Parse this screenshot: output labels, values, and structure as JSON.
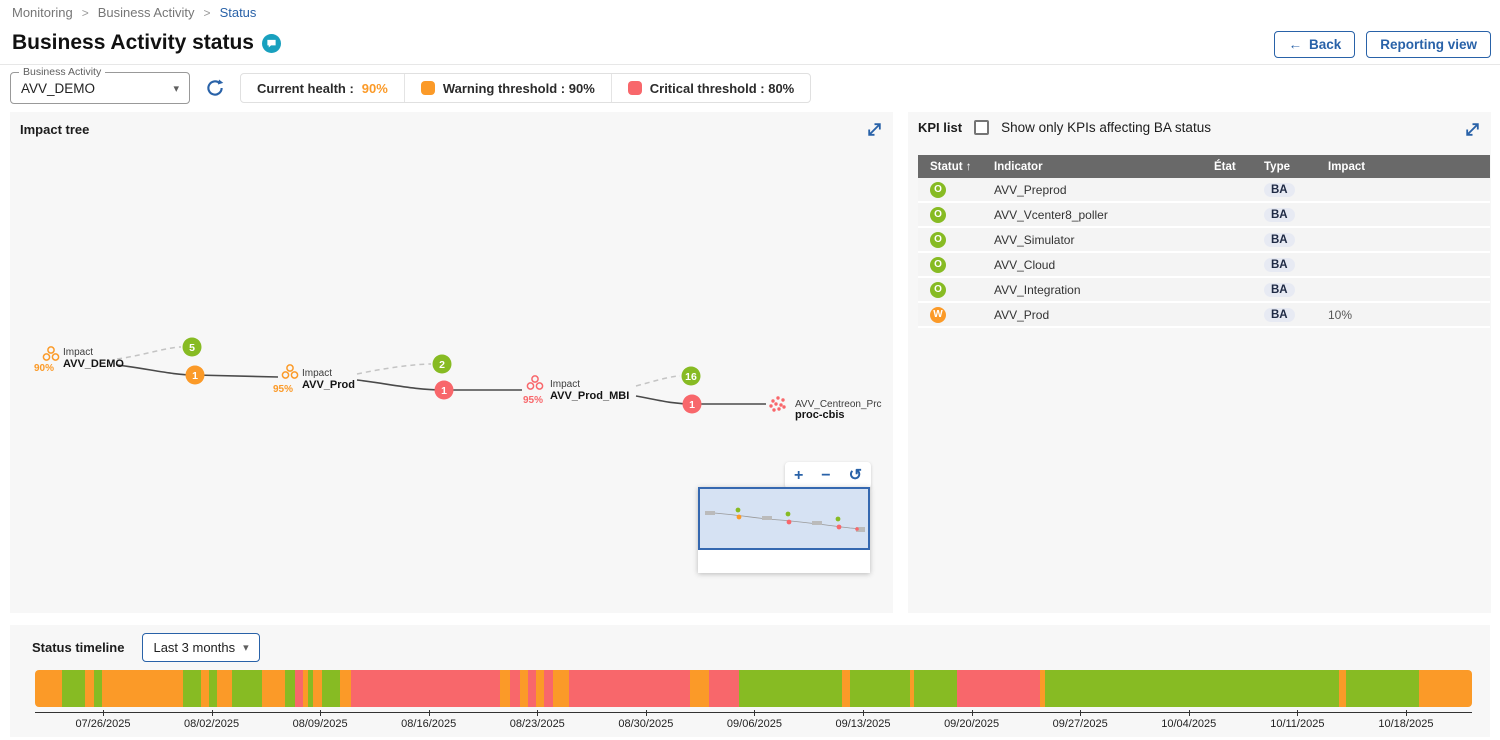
{
  "breadcrumb": {
    "items": [
      "Monitoring",
      "Business Activity",
      "Status"
    ],
    "separator": ">"
  },
  "header": {
    "title": "Business Activity status",
    "back_label": "Back",
    "back_arrow": "←",
    "reporting_label": "Reporting view"
  },
  "controls": {
    "ba_select": {
      "label": "Business Activity",
      "value": "AVV_DEMO"
    },
    "chips": {
      "current_health": {
        "label": "Current health :",
        "value": "90%"
      },
      "warning": {
        "label": "Warning threshold : 90%"
      },
      "critical": {
        "label": "Critical threshold : 80%"
      }
    }
  },
  "impact_tree": {
    "title": "Impact tree",
    "nodes": [
      {
        "percent": "90%",
        "label_top": "Impact",
        "label_bottom": "AVV_DEMO",
        "status": "warning"
      },
      {
        "percent": "95%",
        "label_top": "Impact",
        "label_bottom": "AVV_Prod",
        "status": "warning"
      },
      {
        "percent": "95%",
        "label_top": "Impact",
        "label_bottom": "AVV_Prod_MBI",
        "status": "critical"
      },
      {
        "label_top": "AVV_Centreon_Prc",
        "label_bottom": "proc-cbis",
        "status": "critical"
      }
    ],
    "badges": [
      {
        "value": "5",
        "color": "ok"
      },
      {
        "value": "1",
        "color": "warn"
      },
      {
        "value": "2",
        "color": "ok"
      },
      {
        "value": "1",
        "color": "crit"
      },
      {
        "value": "16",
        "color": "ok"
      },
      {
        "value": "1",
        "color": "crit"
      }
    ],
    "zoom_controls": {
      "zoom_in": "+",
      "zoom_out": "−",
      "reset": "↺"
    }
  },
  "kpi_list": {
    "title": "KPI list",
    "filter_label": "Show only KPIs affecting BA status",
    "filter_checked": false,
    "sort_icon": "↑",
    "columns": [
      "Statut",
      "Indicator",
      "État",
      "Type",
      "Impact"
    ],
    "rows": [
      {
        "status": "O",
        "indicator": "AVV_Preprod",
        "etat": "",
        "type": "BA",
        "impact": ""
      },
      {
        "status": "O",
        "indicator": "AVV_Vcenter8_poller",
        "etat": "",
        "type": "BA",
        "impact": ""
      },
      {
        "status": "O",
        "indicator": "AVV_Simulator",
        "etat": "",
        "type": "BA",
        "impact": ""
      },
      {
        "status": "O",
        "indicator": "AVV_Cloud",
        "etat": "",
        "type": "BA",
        "impact": ""
      },
      {
        "status": "O",
        "indicator": "AVV_Integration",
        "etat": "",
        "type": "BA",
        "impact": ""
      },
      {
        "status": "W",
        "indicator": "AVV_Prod",
        "etat": "",
        "type": "BA",
        "impact": "10%"
      }
    ]
  },
  "timeline": {
    "title": "Status timeline",
    "range_label": "Last 3 months",
    "ticks": [
      "07/26/2025",
      "08/02/2025",
      "08/09/2025",
      "08/16/2025",
      "08/23/2025",
      "08/30/2025",
      "09/06/2025",
      "09/13/2025",
      "09/20/2025",
      "09/27/2025",
      "10/04/2025",
      "10/11/2025",
      "10/18/2025"
    ],
    "tick_start_pct": 4.73,
    "tick_step_pct": 7.556,
    "segments": [
      {
        "c": "o",
        "w": 1.9
      },
      {
        "c": "g",
        "w": 1.6
      },
      {
        "c": "o",
        "w": 0.6
      },
      {
        "c": "g",
        "w": 0.6
      },
      {
        "c": "o",
        "w": 5.6
      },
      {
        "c": "g",
        "w": 1.3
      },
      {
        "c": "o",
        "w": 0.5
      },
      {
        "c": "g",
        "w": 0.6
      },
      {
        "c": "o",
        "w": 1.0
      },
      {
        "c": "g",
        "w": 2.1
      },
      {
        "c": "o",
        "w": 1.6
      },
      {
        "c": "g",
        "w": 0.7
      },
      {
        "c": "r",
        "w": 0.6
      },
      {
        "c": "o",
        "w": 0.3
      },
      {
        "c": "g",
        "w": 0.4
      },
      {
        "c": "o",
        "w": 0.6
      },
      {
        "c": "g",
        "w": 1.3
      },
      {
        "c": "o",
        "w": 0.7
      },
      {
        "c": "r",
        "w": 10.4
      },
      {
        "c": "o",
        "w": 0.7
      },
      {
        "c": "r",
        "w": 0.7
      },
      {
        "c": "o",
        "w": 0.6
      },
      {
        "c": "r",
        "w": 0.5
      },
      {
        "c": "o",
        "w": 0.6
      },
      {
        "c": "r",
        "w": 0.6
      },
      {
        "c": "o",
        "w": 1.1
      },
      {
        "c": "r",
        "w": 8.5
      },
      {
        "c": "o",
        "w": 1.3
      },
      {
        "c": "r",
        "w": 2.1
      },
      {
        "c": "g",
        "w": 7.2
      },
      {
        "c": "o",
        "w": 0.5
      },
      {
        "c": "g",
        "w": 4.2
      },
      {
        "c": "o",
        "w": 0.3
      },
      {
        "c": "g",
        "w": 3.0
      },
      {
        "c": "r",
        "w": 5.8
      },
      {
        "c": "o",
        "w": 0.3
      },
      {
        "c": "g",
        "w": 20.5
      },
      {
        "c": "o",
        "w": 0.5
      },
      {
        "c": "g",
        "w": 5.1
      },
      {
        "c": "o",
        "w": 3.7
      }
    ]
  },
  "colors": {
    "ok": "#87BB23",
    "warning": "#FB9A28",
    "critical": "#F8676B",
    "accent": "#2962A8",
    "table_header": "#696969",
    "teal": "#18A0BE"
  }
}
